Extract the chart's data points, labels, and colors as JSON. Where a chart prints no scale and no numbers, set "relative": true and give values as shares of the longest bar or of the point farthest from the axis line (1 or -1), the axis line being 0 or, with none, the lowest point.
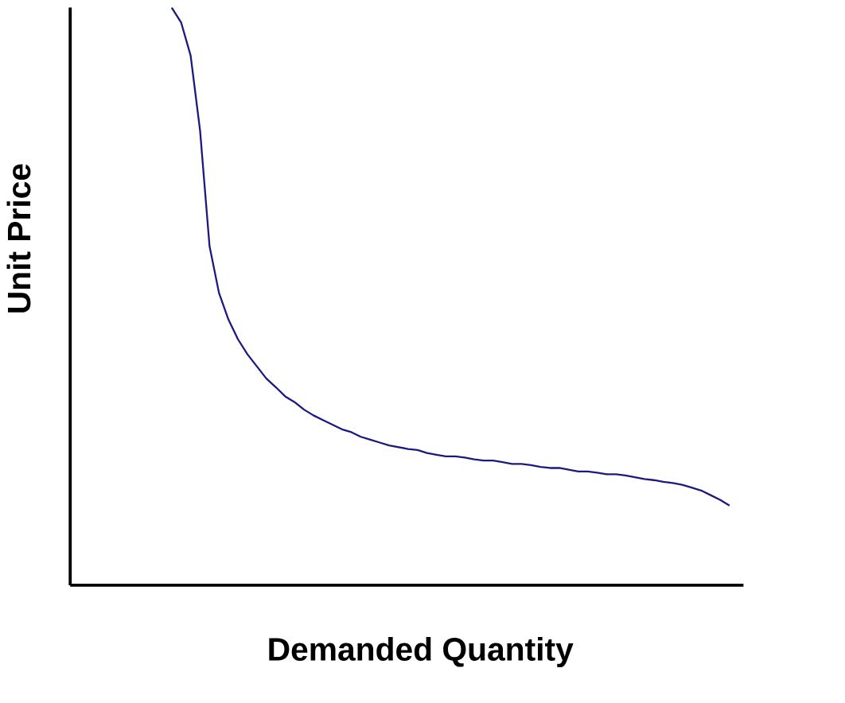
{
  "chart_data": {
    "type": "line",
    "xlabel": "Demanded Quantity",
    "ylabel": "Unit Price",
    "relative": true,
    "color": "#1a1a80",
    "categories": [
      null,
      null,
      null,
      null,
      null,
      null,
      null,
      null,
      null,
      null,
      null,
      null,
      null,
      null,
      null,
      null,
      null,
      null,
      null,
      null,
      null,
      null,
      null,
      null,
      null,
      null,
      null,
      null,
      null,
      null,
      null,
      null,
      null,
      null,
      null,
      null,
      null,
      null,
      null,
      null,
      null,
      null,
      null,
      null,
      null,
      null,
      null,
      null,
      null,
      null,
      null,
      null,
      null,
      null,
      null,
      null,
      null,
      null,
      null,
      null
    ],
    "values": [
      1.0,
      0.974,
      0.917,
      0.787,
      0.587,
      0.506,
      0.46,
      0.426,
      0.4,
      0.379,
      0.358,
      0.343,
      0.327,
      0.317,
      0.304,
      0.294,
      0.286,
      0.278,
      0.27,
      0.265,
      0.257,
      0.252,
      0.247,
      0.242,
      0.239,
      0.236,
      0.234,
      0.229,
      0.226,
      0.223,
      0.223,
      0.221,
      0.218,
      0.216,
      0.216,
      0.213,
      0.21,
      0.21,
      0.208,
      0.205,
      0.203,
      0.203,
      0.2,
      0.197,
      0.197,
      0.195,
      0.192,
      0.192,
      0.19,
      0.187,
      0.184,
      0.182,
      0.179,
      0.177,
      0.174,
      0.169,
      0.164,
      0.156,
      0.148,
      0.138
    ]
  }
}
